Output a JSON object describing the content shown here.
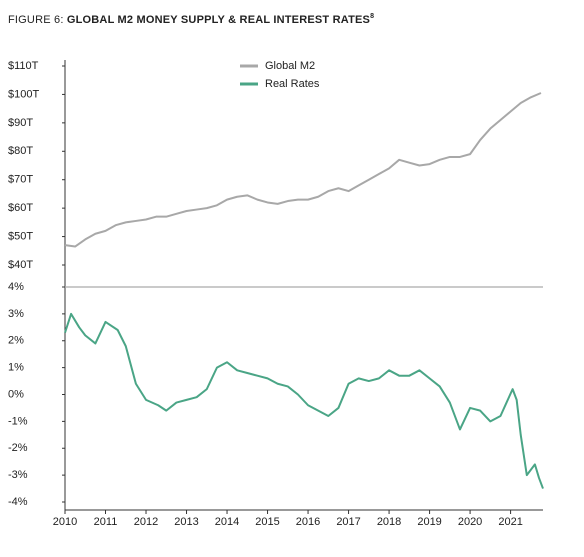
{
  "chart_data": [
    {
      "type": "line",
      "title_prefix": "FIGURE 6:",
      "title": "GLOBAL M2 MONEY SUPPLY & REAL INTEREST RATES",
      "title_note": "8",
      "xlim": [
        2010,
        2021.8
      ],
      "ylim": [
        40,
        110
      ],
      "yticks": [
        {
          "value": 40,
          "label": "$40T"
        },
        {
          "value": 50,
          "label": "$50T"
        },
        {
          "value": 60,
          "label": "$60T"
        },
        {
          "value": 70,
          "label": "$70T"
        },
        {
          "value": 80,
          "label": "$80T"
        },
        {
          "value": 90,
          "label": "$90T"
        },
        {
          "value": 100,
          "label": "$100T"
        },
        {
          "value": 110,
          "label": "$110T"
        }
      ],
      "legend": "top",
      "x": [
        2010,
        2010.25,
        2010.5,
        2010.75,
        2011,
        2011.25,
        2011.5,
        2011.75,
        2012,
        2012.25,
        2012.5,
        2012.75,
        2013,
        2013.25,
        2013.5,
        2013.75,
        2014,
        2014.25,
        2014.5,
        2014.75,
        2015,
        2015.25,
        2015.5,
        2015.75,
        2016,
        2016.25,
        2016.5,
        2016.75,
        2017,
        2017.25,
        2017.5,
        2017.75,
        2018,
        2018.25,
        2018.5,
        2018.75,
        2019,
        2019.25,
        2019.5,
        2019.75,
        2020,
        2020.25,
        2020.5,
        2020.75,
        2021,
        2021.25,
        2021.5,
        2021.75
      ],
      "series": [
        {
          "name": "Global M2",
          "color": "#a8a8a8",
          "values": [
            47,
            46.5,
            49,
            51,
            52,
            54,
            55,
            55.5,
            56,
            57,
            57,
            58,
            59,
            59.5,
            60,
            61,
            63,
            64,
            64.5,
            63,
            62,
            61.5,
            62.5,
            63,
            63,
            64,
            66,
            67,
            66,
            68,
            70,
            72,
            74,
            77,
            76,
            75,
            75.5,
            77,
            78,
            78,
            79,
            84,
            88,
            91,
            94,
            97,
            99,
            100.5
          ]
        }
      ]
    },
    {
      "type": "line",
      "xlim": [
        2010,
        2021.8
      ],
      "ylim": [
        -4,
        4
      ],
      "xticks": [
        2010,
        2011,
        2012,
        2013,
        2014,
        2015,
        2016,
        2017,
        2018,
        2019,
        2020,
        2021
      ],
      "yticks": [
        {
          "value": -4,
          "label": "-4%"
        },
        {
          "value": -3,
          "label": "-3%"
        },
        {
          "value": -2,
          "label": "-2%"
        },
        {
          "value": -1,
          "label": "-1%"
        },
        {
          "value": 0,
          "label": "0%"
        },
        {
          "value": 1,
          "label": "1%"
        },
        {
          "value": 2,
          "label": "2%"
        },
        {
          "value": 3,
          "label": "3%"
        },
        {
          "value": 4,
          "label": "4%"
        }
      ],
      "x": [
        2010,
        2010.15,
        2010.35,
        2010.5,
        2010.75,
        2011,
        2011.3,
        2011.5,
        2011.75,
        2012,
        2012.3,
        2012.5,
        2012.75,
        2013,
        2013.25,
        2013.5,
        2013.75,
        2014,
        2014.25,
        2014.5,
        2014.75,
        2015,
        2015.25,
        2015.5,
        2015.75,
        2016,
        2016.25,
        2016.5,
        2016.75,
        2017,
        2017.25,
        2017.5,
        2017.75,
        2018,
        2018.25,
        2018.5,
        2018.75,
        2019,
        2019.25,
        2019.5,
        2019.75,
        2020,
        2020.25,
        2020.5,
        2020.75,
        2020.9,
        2021.05,
        2021.15,
        2021.25,
        2021.4,
        2021.5,
        2021.6,
        2021.7,
        2021.8
      ],
      "series": [
        {
          "name": "Real Rates",
          "color": "#4aa586",
          "values": [
            2.3,
            3.0,
            2.5,
            2.2,
            1.9,
            2.7,
            2.4,
            1.8,
            0.4,
            -0.2,
            -0.4,
            -0.6,
            -0.3,
            -0.2,
            -0.1,
            0.2,
            1.0,
            1.2,
            0.9,
            0.8,
            0.7,
            0.6,
            0.4,
            0.3,
            0.0,
            -0.4,
            -0.6,
            -0.8,
            -0.5,
            0.4,
            0.6,
            0.5,
            0.6,
            0.9,
            0.7,
            0.7,
            0.9,
            0.6,
            0.3,
            -0.3,
            -1.3,
            -0.5,
            -0.6,
            -1.0,
            -0.8,
            -0.3,
            0.2,
            -0.2,
            -1.5,
            -3.0,
            -2.8,
            -2.6,
            -3.1,
            -3.5
          ]
        }
      ]
    }
  ]
}
